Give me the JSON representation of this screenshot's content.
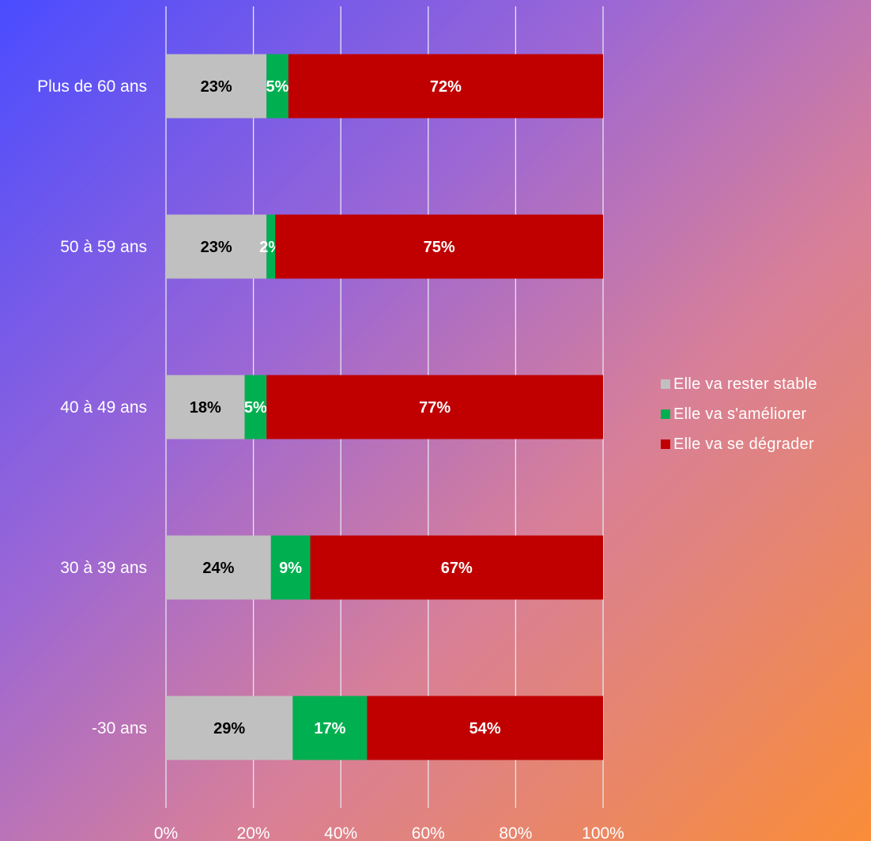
{
  "chart_data": {
    "type": "bar",
    "orientation": "horizontal",
    "stacked": true,
    "categories": [
      "Plus de 60 ans",
      "50 à 59 ans",
      "40 à 49 ans",
      "30 à 39 ans",
      "-30 ans"
    ],
    "series": [
      {
        "name": "Elle va rester stable",
        "color": "#c0c0c0",
        "label_color": "#000000",
        "values": [
          23,
          23,
          18,
          24,
          29
        ]
      },
      {
        "name": "Elle va s'améliorer",
        "color": "#00b050",
        "label_color": "#ffffff",
        "values": [
          5,
          2,
          5,
          9,
          17
        ]
      },
      {
        "name": "Elle va se dégrader",
        "color": "#c00000",
        "label_color": "#ffffff",
        "values": [
          72,
          75,
          77,
          67,
          54
        ]
      }
    ],
    "value_suffix": "%",
    "xlim": [
      0,
      100
    ],
    "xticks": [
      "0%",
      "20%",
      "40%",
      "60%",
      "80%",
      "100%"
    ],
    "grid": true,
    "legend_position": "right"
  }
}
